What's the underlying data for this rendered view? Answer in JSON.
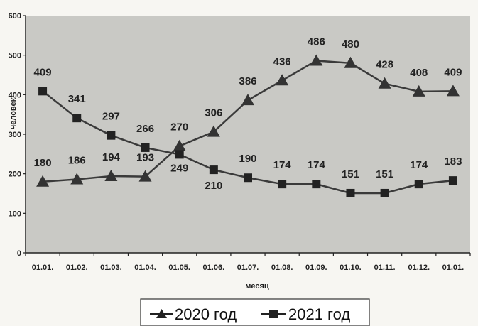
{
  "chart_data": {
    "type": "line",
    "categories": [
      "01.01.",
      "01.02.",
      "01.03.",
      "01.04.",
      "01.05.",
      "01.06.",
      "01.07.",
      "01.08.",
      "01.09.",
      "01.10.",
      "01.11.",
      "01.12.",
      "01.01."
    ],
    "series": [
      {
        "name": "2020 год",
        "marker": "triangle",
        "values": [
          180,
          186,
          194,
          193,
          270,
          306,
          386,
          436,
          486,
          480,
          428,
          408,
          409
        ],
        "labels": [
          "180",
          "186",
          "194",
          "193",
          "270",
          "306",
          "386",
          "436",
          "486",
          "480",
          "428",
          "408",
          "409"
        ]
      },
      {
        "name": "2021 год",
        "marker": "square",
        "values": [
          409,
          341,
          297,
          266,
          249,
          210,
          190,
          174,
          174,
          151,
          151,
          174,
          183
        ],
        "labels": [
          "409",
          "341",
          "297",
          "266",
          "249",
          "210",
          "190",
          "174",
          "174",
          "151",
          "151",
          "174",
          "183"
        ]
      }
    ],
    "xlabel": "месяц",
    "ylabel": "человек",
    "ylim": [
      0,
      600
    ],
    "yticks": [
      "0",
      "100",
      "200",
      "300",
      "400",
      "500",
      "600"
    ],
    "grid": false,
    "legend": "bottom",
    "colors": {
      "plot_bg": "#c9c9c5",
      "line": "#3a3a3a",
      "page_bg": "#f7f6f2"
    }
  }
}
